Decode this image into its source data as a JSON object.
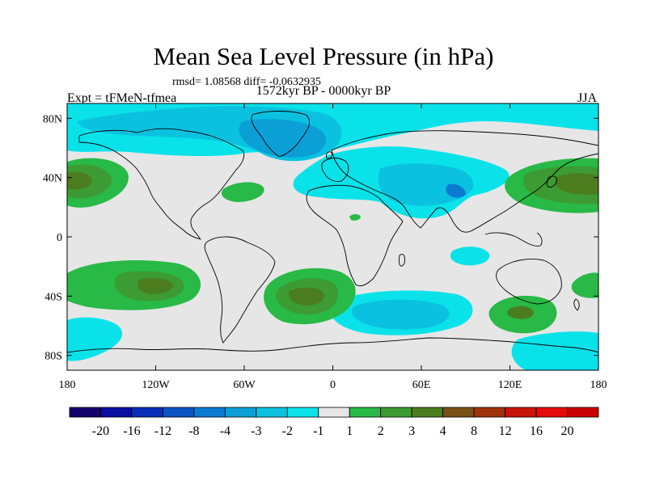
{
  "header": {
    "title": "Mean Sea Level Pressure (in hPa)",
    "stats": "rmsd= 1.08568 diff= -0.0632935",
    "left_label": "Expt = tFMeN-tfmea",
    "center_label": "1572kyr BP - 0000kyr BP",
    "right_label": "JJA"
  },
  "map": {
    "projection": "cylindrical-equidistant",
    "lon_range": [
      -180,
      180
    ],
    "lat_range": [
      -90,
      90
    ],
    "background_value_color": "#e6e6e6",
    "coastline_color": "#000000"
  },
  "axes": {
    "y_ticks": [
      {
        "value": 80,
        "label": "80N"
      },
      {
        "value": 40,
        "label": "40N"
      },
      {
        "value": 0,
        "label": "0"
      },
      {
        "value": -40,
        "label": "40S"
      },
      {
        "value": -80,
        "label": "80S"
      }
    ],
    "x_ticks": [
      {
        "value": -180,
        "label": "180"
      },
      {
        "value": -120,
        "label": "120W"
      },
      {
        "value": -60,
        "label": "60W"
      },
      {
        "value": 0,
        "label": "0"
      },
      {
        "value": 60,
        "label": "60E"
      },
      {
        "value": 120,
        "label": "120E"
      },
      {
        "value": 180,
        "label": "180"
      }
    ]
  },
  "colorbar": {
    "levels": [
      "-20",
      "-16",
      "-12",
      "-8",
      "-4",
      "-3",
      "-2",
      "-1",
      "1",
      "2",
      "3",
      "4",
      "8",
      "12",
      "16",
      "20"
    ],
    "colors": [
      "#15006b",
      "#0a0da0",
      "#0a2db7",
      "#0a54c3",
      "#0a7bd0",
      "#0aa0d6",
      "#0ac2e0",
      "#0ae2ea",
      "#e6e6e6",
      "#28b946",
      "#3c9b32",
      "#4b7d1e",
      "#785014",
      "#a0320a",
      "#c8140a",
      "#e60a0a",
      "#c80000"
    ]
  },
  "chart_data": {
    "type": "heatmap",
    "title": "Mean Sea Level Pressure (in hPa)",
    "units": "hPa",
    "field": "MSLP difference, 1572kyr BP minus 0000kyr BP, JJA",
    "rmsd": 1.08568,
    "diff": -0.0632935,
    "x_range": [
      -180,
      180
    ],
    "y_range": [
      -90,
      90
    ],
    "anomalies": [
      {
        "region": "Arctic / Greenland",
        "lon": -35,
        "lat": 70,
        "value": -3,
        "sign": "low"
      },
      {
        "region": "Central Asia",
        "lon": 65,
        "lat": 38,
        "value": -3,
        "sign": "low"
      },
      {
        "region": "Southern Indian Ocean",
        "lon": 50,
        "lat": -48,
        "value": -3,
        "sign": "low"
      },
      {
        "region": "South Pacific high-lat",
        "lon": -165,
        "lat": -60,
        "value": -2,
        "sign": "low"
      },
      {
        "region": "North Pacific (east)",
        "lon": -170,
        "lat": 42,
        "value": 3,
        "sign": "high"
      },
      {
        "region": "North Pacific (west)",
        "lon": 165,
        "lat": 40,
        "value": 3,
        "sign": "high"
      },
      {
        "region": "North Atlantic",
        "lon": -55,
        "lat": 34,
        "value": 2,
        "sign": "high"
      },
      {
        "region": "South Pacific subtropics",
        "lon": -150,
        "lat": -35,
        "value": 3,
        "sign": "high"
      },
      {
        "region": "South Atlantic",
        "lon": -20,
        "lat": -40,
        "value": 3,
        "sign": "high"
      },
      {
        "region": "South Indian / Australia",
        "lon": 125,
        "lat": -47,
        "value": 3,
        "sign": "high"
      }
    ]
  }
}
